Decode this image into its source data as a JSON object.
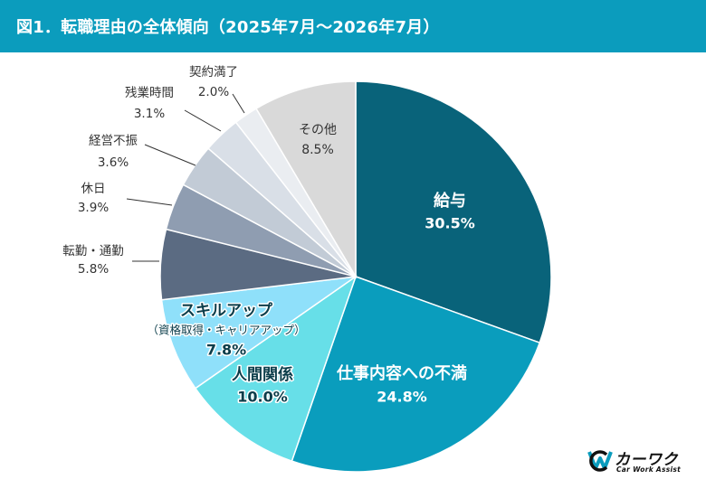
{
  "header": {
    "title": "図1．転職理由の全体傾向（2025年7月〜2026年7月）",
    "background": "#0b9cbd"
  },
  "chart_data": {
    "type": "pie",
    "unit": "%",
    "slices": [
      {
        "label": "給与",
        "value": 30.5,
        "display": "30.5%",
        "color": "#09637a",
        "label_style": "inside-large"
      },
      {
        "label": "仕事内容への不満",
        "value": 24.8,
        "display": "24.8%",
        "color": "#0a9dbd",
        "label_style": "inside-large"
      },
      {
        "label": "人間関係",
        "value": 10.0,
        "display": "10.0%",
        "color": "#67dfe8",
        "label_style": "inside"
      },
      {
        "label": "スキルアップ",
        "sublabel": "（資格取得・キャリアアップ）",
        "value": 7.8,
        "display": "7.8%",
        "color": "#8fe0fa",
        "label_style": "inside-wide"
      },
      {
        "label": "転勤・通勤",
        "value": 5.8,
        "display": "5.8%",
        "color": "#5b6b82",
        "label_style": "outside"
      },
      {
        "label": "休日",
        "value": 3.9,
        "display": "3.9%",
        "color": "#8f9db1",
        "label_style": "outside"
      },
      {
        "label": "経営不振",
        "value": 3.6,
        "display": "3.6%",
        "color": "#c2cbd6",
        "label_style": "outside"
      },
      {
        "label": "残業時間",
        "value": 3.1,
        "display": "3.1%",
        "color": "#d9dfe7",
        "label_style": "outside"
      },
      {
        "label": "契約満了",
        "value": 2.0,
        "display": "2.0%",
        "color": "#eaedf1",
        "label_style": "outside"
      },
      {
        "label": "その他",
        "value": 8.5,
        "display": "8.5%",
        "color": "#d9d9d9",
        "label_style": "inside-dark"
      }
    ]
  },
  "logo": {
    "name": "カーワク",
    "tagline": "Car Work Assist",
    "colors": [
      "#0b9cbd",
      "#111111"
    ]
  }
}
